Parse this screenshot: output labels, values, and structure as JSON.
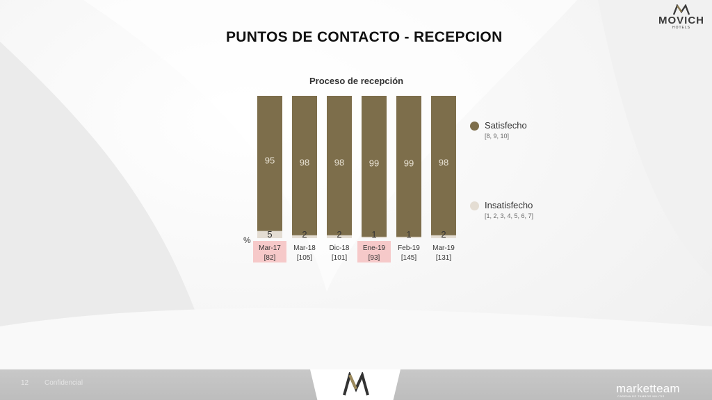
{
  "page": {
    "title": "PUNTOS DE CONTACTO - RECEPCION",
    "slide_number": "12",
    "footer_tag": "Confidencial",
    "percent_symbol": "%"
  },
  "brand": {
    "name": "MOVICH",
    "sub": "HOTELS",
    "footer_brand": "marketteam",
    "footer_brand_sub": "CADENA DE TAMBOS MULTIS"
  },
  "colors": {
    "satisfied": "#7d6e4b",
    "unsatisfied": "#e4ddd3",
    "highlight": "#f6c9c9"
  },
  "chart_data": {
    "type": "bar",
    "stacked": true,
    "percent": true,
    "title": "Proceso de recepción",
    "categories": [
      "Mar-17",
      "Mar-18",
      "Dic-18",
      "Ene-19",
      "Feb-19",
      "Mar-19"
    ],
    "bases": [
      "[82]",
      "[105]",
      "[101]",
      "[93]",
      "[145]",
      "[131]"
    ],
    "highlighted": [
      true,
      false,
      false,
      true,
      false,
      false
    ],
    "series": [
      {
        "name": "Insatisfecho",
        "detail": "[1, 2, 3, 4, 5, 6, 7]",
        "color": "#e4ddd3",
        "values": [
          5,
          2,
          2,
          1,
          1,
          2
        ]
      },
      {
        "name": "Satisfecho",
        "detail": "[8, 9, 10]",
        "color": "#7d6e4b",
        "values": [
          95,
          98,
          98,
          99,
          99,
          98
        ]
      }
    ],
    "legend_position": "right"
  }
}
